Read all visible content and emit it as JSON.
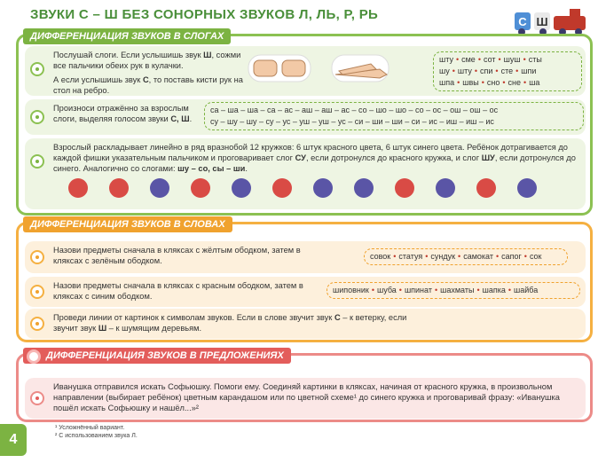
{
  "title": "ЗВУКИ С – Ш БЕЗ СОНОРНЫХ ЗВУКОВ Л, ЛЬ, Р, РЬ",
  "badge": [
    "С",
    "Ш"
  ],
  "page_number": "4",
  "sections": [
    {
      "title": "ДИФФЕРЕНЦИАЦИЯ ЗВУКОВ В СЛОГАХ",
      "items": [
        {
          "paragraphs": [
            [
              "Послушай слоги. Если услышишь звук ",
              "Ш",
              ", сожми все пальчики обеих рук в кулачки."
            ],
            [
              "А если услышишь звук ",
              "С",
              ", то поставь кисти рук на стол на ребро."
            ]
          ],
          "syllables": [
            [
              "шту",
              "сме",
              "сот",
              "шуш",
              "сты"
            ],
            [
              "шу",
              "шту",
              "спи",
              "сте",
              "шпи"
            ],
            [
              "шпа",
              "швы",
              "сно",
              "сне",
              "ша"
            ]
          ]
        },
        {
          "paragraphs": [
            [
              "Произноси отражённо за взрослым слоги, выделяя голосом звуки ",
              "С, Ш",
              "."
            ]
          ],
          "chains": [
            "са – ша – ша – са – ас – аш – аш – ас – со – шо – шо – со – ос – ош – ош – ос",
            "су – шу – шу – су – ус – уш – уш – ус – си – ши – ши – си – ис – иш – иш – ис"
          ]
        },
        {
          "paragraphs": [
            [
              "Взрослый раскладывает линейно в ряд вразнобой 12 кружков: 6 штук красного цвета, 6 штук синего цвета. Ребёнок дотрагивается до каждой фишки указательным пальчиком и проговаривает слог ",
              "СУ",
              ", если дотронулся до красного кружка, и слог ",
              "ШУ",
              ", если дотронулся до синего. Аналогично со слогами: ",
              "шу – со, сы – ши",
              "."
            ]
          ]
        }
      ]
    },
    {
      "title": "ДИФФЕРЕНЦИАЦИЯ ЗВУКОВ В СЛОВАХ",
      "items": [
        {
          "paragraphs": [
            [
              "Назови предметы сначала в кляксах с жёлтым ободком, затем в кляксах с зелёным ободком."
            ]
          ],
          "words": [
            "совок",
            "статуя",
            "сундук",
            "самокат",
            "сапог",
            "сок"
          ]
        },
        {
          "paragraphs": [
            [
              "Назови предметы сначала в кляксах с красным ободком, затем в кляксах с синим ободком."
            ]
          ],
          "words": [
            "шиповник",
            "шуба",
            "шпинат",
            "шахматы",
            "шапка",
            "шайба"
          ]
        },
        {
          "paragraphs": [
            [
              "Проведи линии от картинок к символам звуков. Если в слове звучит звук ",
              "С",
              " – к ветерку, если звучит звук ",
              "Ш",
              " – к шумящим деревьям."
            ]
          ]
        }
      ]
    },
    {
      "title": "ДИФФЕРЕНЦИАЦИЯ ЗВУКОВ В ПРЕДЛОЖЕНИЯХ",
      "items": [
        {
          "paragraphs": [
            [
              "Иванушка отправился искать Софьюшку. Помоги ему. Соединяй картинки в кляксах, начиная от красного кружка, в произвольном направлении (выбирает ребёнок) цветным карандашом или по цветной схеме¹ до синего кружка и проговаривай фразу: «Иванушка пошёл искать Софьюшку и нашёл...»²"
            ]
          ]
        }
      ]
    }
  ],
  "footnotes": [
    "¹ Усложнённый вариант.",
    "² С использованием звука Л."
  ]
}
